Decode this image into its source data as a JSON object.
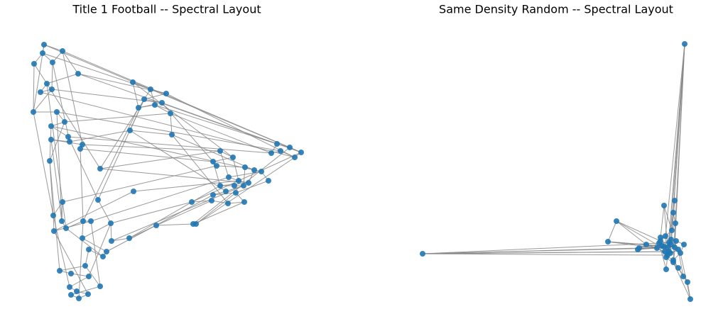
{
  "chart_data": [
    {
      "type": "network",
      "title": "Title 1 Football -- Spectral Layout",
      "node_color": "#1f77b4",
      "edge_color": "#888888",
      "xlim": [
        40,
        430
      ],
      "ylim": [
        42,
        412
      ],
      "x": [
        62,
        48,
        60,
        88,
        74,
        110,
        66,
        57,
        73,
        47,
        80,
        91,
        72,
        96,
        98,
        72,
        116,
        113,
        187,
        212,
        234,
        203,
        228,
        195,
        218,
        240,
        183,
        242,
        390,
        408,
        424,
        415,
        395,
        382,
        310,
        328,
        300,
        305,
        345,
        358,
        368,
        322,
        336,
        350,
        310,
        330,
        343,
        318,
        300,
        378,
        332,
        344,
        321,
        298,
        270,
        188,
        141,
        70,
        75,
        88,
        87,
        93,
        117,
        128,
        76,
        138,
        156,
        157,
        182,
        220,
        272,
        276,
        116,
        150,
        145,
        125,
        120,
        84,
        100,
        125,
        98,
        108,
        124,
        111,
        100,
        141
      ],
      "y": [
        404,
        377,
        392,
        395,
        379,
        363,
        349,
        337,
        341,
        309,
        309,
        295,
        289,
        274,
        267,
        270,
        263,
        257,
        351,
        341,
        335,
        327,
        322,
        315,
        319,
        307,
        283,
        277,
        264,
        259,
        252,
        245,
        254,
        251,
        254,
        245,
        239,
        233,
        231,
        227,
        225,
        217,
        212,
        209,
        205,
        205,
        205,
        197,
        192,
        212,
        195,
        182,
        180,
        184,
        182,
        197,
        229,
        240,
        163,
        182,
        155,
        145,
        155,
        155,
        141,
        185,
        152,
        127,
        131,
        149,
        151,
        151,
        131,
        112,
        105,
        115,
        92,
        85,
        81,
        77,
        62,
        56,
        52,
        46,
        51,
        63
      ],
      "edges": [
        [
          0,
          2
        ],
        [
          0,
          3
        ],
        [
          1,
          2
        ],
        [
          2,
          4
        ],
        [
          3,
          4
        ],
        [
          3,
          5
        ],
        [
          1,
          6
        ],
        [
          6,
          7
        ],
        [
          7,
          8
        ],
        [
          8,
          9
        ],
        [
          9,
          10
        ],
        [
          10,
          11
        ],
        [
          11,
          12
        ],
        [
          12,
          13
        ],
        [
          13,
          14
        ],
        [
          14,
          15
        ],
        [
          15,
          16
        ],
        [
          16,
          17
        ],
        [
          4,
          8
        ],
        [
          5,
          6
        ],
        [
          1,
          9
        ],
        [
          18,
          19
        ],
        [
          19,
          20
        ],
        [
          20,
          21
        ],
        [
          21,
          22
        ],
        [
          22,
          23
        ],
        [
          23,
          24
        ],
        [
          24,
          25
        ],
        [
          18,
          23
        ],
        [
          19,
          24
        ],
        [
          25,
          27
        ],
        [
          26,
          27
        ],
        [
          21,
          26
        ],
        [
          28,
          29
        ],
        [
          29,
          30
        ],
        [
          30,
          31
        ],
        [
          31,
          32
        ],
        [
          32,
          33
        ],
        [
          28,
          33
        ],
        [
          34,
          35
        ],
        [
          35,
          36
        ],
        [
          36,
          37
        ],
        [
          37,
          38
        ],
        [
          38,
          39
        ],
        [
          39,
          40
        ],
        [
          40,
          41
        ],
        [
          41,
          42
        ],
        [
          42,
          43
        ],
        [
          43,
          44
        ],
        [
          44,
          45
        ],
        [
          45,
          46
        ],
        [
          46,
          47
        ],
        [
          47,
          48
        ],
        [
          48,
          50
        ],
        [
          49,
          50
        ],
        [
          50,
          51
        ],
        [
          51,
          52
        ],
        [
          52,
          53
        ],
        [
          53,
          54
        ],
        [
          34,
          41
        ],
        [
          35,
          42
        ],
        [
          36,
          44
        ],
        [
          38,
          46
        ],
        [
          39,
          43
        ],
        [
          40,
          49
        ],
        [
          57,
          58
        ],
        [
          58,
          59
        ],
        [
          59,
          60
        ],
        [
          60,
          61
        ],
        [
          61,
          62
        ],
        [
          62,
          63
        ],
        [
          63,
          64
        ],
        [
          64,
          58
        ],
        [
          65,
          66
        ],
        [
          66,
          67
        ],
        [
          67,
          68
        ],
        [
          68,
          69
        ],
        [
          69,
          70
        ],
        [
          70,
          71
        ],
        [
          72,
          73
        ],
        [
          73,
          74
        ],
        [
          74,
          75
        ],
        [
          75,
          76
        ],
        [
          76,
          77
        ],
        [
          77,
          78
        ],
        [
          78,
          79
        ],
        [
          79,
          80
        ],
        [
          80,
          81
        ],
        [
          81,
          82
        ],
        [
          82,
          83
        ],
        [
          83,
          84
        ],
        [
          84,
          85
        ],
        [
          85,
          76
        ],
        [
          72,
          66
        ],
        [
          0,
          30
        ],
        [
          3,
          29
        ],
        [
          5,
          28
        ],
        [
          7,
          31
        ],
        [
          10,
          32
        ],
        [
          13,
          33
        ],
        [
          16,
          34
        ],
        [
          17,
          36
        ],
        [
          12,
          40
        ],
        [
          2,
          19
        ],
        [
          5,
          20
        ],
        [
          8,
          22
        ],
        [
          11,
          25
        ],
        [
          14,
          26
        ],
        [
          18,
          35
        ],
        [
          20,
          31
        ],
        [
          22,
          30
        ],
        [
          24,
          28
        ],
        [
          25,
          33
        ],
        [
          27,
          39
        ],
        [
          26,
          47
        ],
        [
          9,
          58
        ],
        [
          11,
          57
        ],
        [
          15,
          60
        ],
        [
          17,
          62
        ],
        [
          13,
          65
        ],
        [
          6,
          56
        ],
        [
          56,
          34
        ],
        [
          56,
          43
        ],
        [
          55,
          42
        ],
        [
          55,
          64
        ],
        [
          54,
          66
        ],
        [
          53,
          69
        ],
        [
          51,
          70
        ],
        [
          50,
          71
        ],
        [
          48,
          73
        ],
        [
          46,
          67
        ],
        [
          44,
          68
        ],
        [
          41,
          63
        ],
        [
          37,
          59
        ],
        [
          30,
          54
        ],
        [
          31,
          71
        ],
        [
          29,
          70
        ],
        [
          57,
          77
        ],
        [
          58,
          80
        ],
        [
          62,
          83
        ],
        [
          63,
          85
        ],
        [
          66,
          79
        ],
        [
          61,
          74
        ],
        [
          64,
          82
        ],
        [
          10,
          60
        ],
        [
          12,
          57
        ],
        [
          6,
          61
        ],
        [
          23,
          62
        ],
        [
          21,
          65
        ],
        [
          19,
          56
        ],
        [
          27,
          52
        ],
        [
          22,
          36
        ],
        [
          0,
          9
        ],
        [
          4,
          14
        ],
        [
          3,
          16
        ]
      ]
    },
    {
      "type": "network",
      "title": "Same Density Random -- Spectral Layout",
      "node_color": "#1f77b4",
      "edge_color": "#888888",
      "xlim": [
        590,
        980
      ],
      "ylim": [
        42,
        412
      ],
      "x": [
        964,
        595,
        868,
        856,
        935,
        950,
        948,
        951,
        946,
        937,
        930,
        945,
        955,
        940,
        925,
        910,
        900,
        898,
        963,
        958,
        948,
        955,
        962,
        968,
        972,
        938,
        930,
        945,
        942,
        935,
        952,
        948,
        932,
        940,
        944,
        936,
        950,
        928,
        942,
        938
      ],
      "y": [
        405,
        109,
        155,
        126,
        177,
        184,
        167,
        152,
        142,
        134,
        127,
        122,
        115,
        107,
        117,
        122,
        117,
        115,
        122,
        110,
        100,
        89,
        77,
        69,
        45,
        87,
        132,
        129,
        112,
        119,
        127,
        97,
        120,
        118,
        110,
        112,
        118,
        124,
        125,
        104
      ],
      "edges": [
        [
          0,
          11
        ],
        [
          0,
          13
        ],
        [
          0,
          28
        ],
        [
          0,
          34
        ],
        [
          0,
          36
        ],
        [
          0,
          9
        ],
        [
          0,
          20
        ],
        [
          1,
          13
        ],
        [
          1,
          14
        ],
        [
          1,
          33
        ],
        [
          1,
          35
        ],
        [
          1,
          28
        ],
        [
          2,
          10
        ],
        [
          2,
          15
        ],
        [
          2,
          3
        ],
        [
          3,
          14
        ],
        [
          3,
          29
        ],
        [
          3,
          32
        ],
        [
          4,
          8
        ],
        [
          4,
          26
        ],
        [
          5,
          6
        ],
        [
          6,
          7
        ],
        [
          7,
          8
        ],
        [
          8,
          9
        ],
        [
          9,
          10
        ],
        [
          10,
          11
        ],
        [
          11,
          12
        ],
        [
          12,
          13
        ],
        [
          13,
          14
        ],
        [
          14,
          15
        ],
        [
          15,
          16
        ],
        [
          16,
          17
        ],
        [
          17,
          32
        ],
        [
          18,
          19
        ],
        [
          19,
          20
        ],
        [
          20,
          21
        ],
        [
          21,
          22
        ],
        [
          22,
          23
        ],
        [
          23,
          24
        ],
        [
          24,
          19
        ],
        [
          24,
          31
        ],
        [
          25,
          13
        ],
        [
          26,
          27
        ],
        [
          27,
          28
        ],
        [
          28,
          29
        ],
        [
          29,
          30
        ],
        [
          30,
          31
        ],
        [
          32,
          33
        ],
        [
          33,
          34
        ],
        [
          34,
          35
        ],
        [
          35,
          36
        ],
        [
          36,
          37
        ],
        [
          37,
          38
        ],
        [
          38,
          39
        ],
        [
          39,
          32
        ],
        [
          12,
          34
        ],
        [
          11,
          36
        ],
        [
          16,
          38
        ],
        [
          17,
          33
        ],
        [
          15,
          35
        ],
        [
          18,
          30
        ],
        [
          21,
          39
        ],
        [
          25,
          37
        ],
        [
          5,
          27
        ],
        [
          6,
          38
        ],
        [
          4,
          33
        ],
        [
          22,
          12
        ],
        [
          23,
          20
        ],
        [
          31,
          35
        ],
        [
          9,
          39
        ],
        [
          7,
          36
        ],
        [
          2,
          28
        ],
        [
          3,
          36
        ],
        [
          1,
          37
        ]
      ]
    }
  ]
}
